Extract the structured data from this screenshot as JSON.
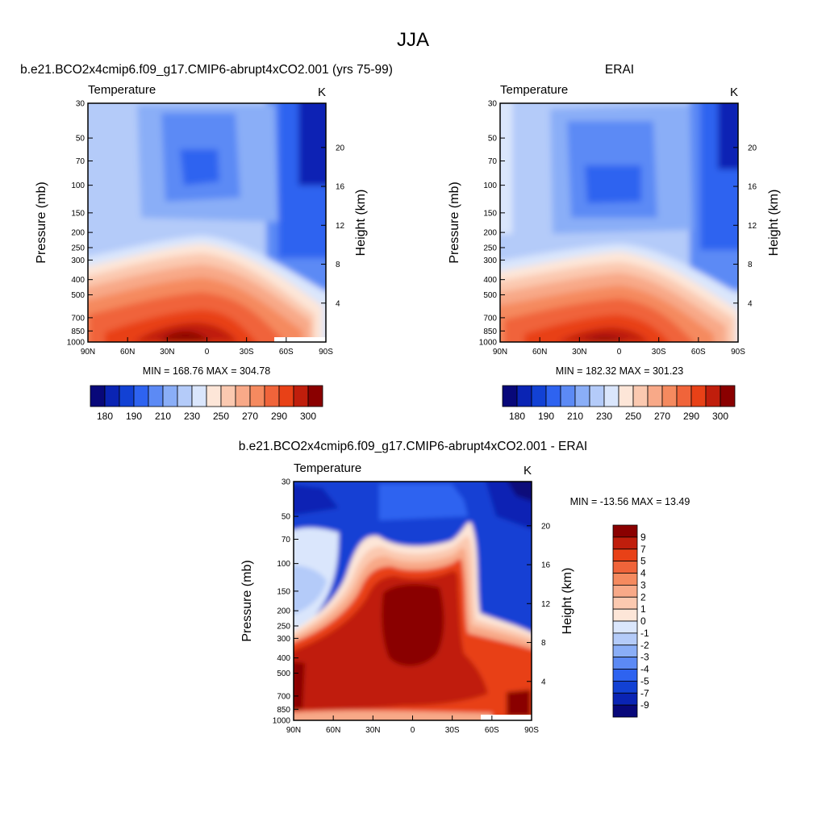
{
  "figure": {
    "title": "JJA"
  },
  "colormaps": {
    "absolute": [
      "#08087a",
      "#0a24b4",
      "#1241d4",
      "#2e63f0",
      "#5c8af5",
      "#8aaef7",
      "#b4cbf9",
      "#dae6fc",
      "#fde6d8",
      "#fbc9b0",
      "#f8a988",
      "#f58a5f",
      "#f0643a",
      "#e84117",
      "#c01e0c",
      "#8a0000"
    ],
    "difference": [
      "#08087a",
      "#0a24b4",
      "#1241d4",
      "#2e63f0",
      "#5c8af5",
      "#8aaef7",
      "#b4cbf9",
      "#dae6fc",
      "#fde6d8",
      "#fbc9b0",
      "#f8a988",
      "#f58a5f",
      "#f0643a",
      "#e84117",
      "#c01e0c",
      "#8a0000"
    ]
  },
  "chart_data": [
    {
      "type": "heatmap",
      "title": "b.e21.BCO2x4cmip6.f09_g17.CMIP6-abrupt4xCO2.001 (yrs 75-99)",
      "left_string": "Temperature",
      "right_string": "K",
      "ylabel": "Pressure (mb)",
      "ylabel_right": "Height (km)",
      "x_ticks": [
        "90N",
        "60N",
        "30N",
        "0",
        "30S",
        "60S",
        "90S"
      ],
      "y_ticks": [
        "30",
        "50",
        "70",
        "100",
        "150",
        "200",
        "250",
        "300",
        "400",
        "500",
        "700",
        "850",
        "1000"
      ],
      "y_right_ticks": [
        "4",
        "8",
        "12",
        "16",
        "20"
      ],
      "stats": "MIN = 168.76  MAX = 304.78",
      "colorbar": {
        "labels": [
          "180",
          "190",
          "210",
          "230",
          "250",
          "270",
          "290",
          "300"
        ]
      },
      "levels": [
        180,
        185,
        190,
        200,
        210,
        220,
        230,
        240,
        250,
        260,
        270,
        280,
        290,
        295,
        300
      ],
      "ylim": [
        30,
        1000
      ],
      "x_range": [
        90,
        -90
      ]
    },
    {
      "type": "heatmap",
      "title": "ERAI",
      "left_string": "Temperature",
      "right_string": "K",
      "ylabel": "Pressure (mb)",
      "ylabel_right": "Height (km)",
      "x_ticks": [
        "90N",
        "60N",
        "30N",
        "0",
        "30S",
        "60S",
        "90S"
      ],
      "y_ticks": [
        "30",
        "50",
        "70",
        "100",
        "150",
        "200",
        "250",
        "300",
        "400",
        "500",
        "700",
        "850",
        "1000"
      ],
      "y_right_ticks": [
        "4",
        "8",
        "12",
        "16",
        "20"
      ],
      "stats": "MIN = 182.32  MAX = 301.23",
      "colorbar": {
        "labels": [
          "180",
          "190",
          "210",
          "230",
          "250",
          "270",
          "290",
          "300"
        ]
      },
      "levels": [
        180,
        185,
        190,
        200,
        210,
        220,
        230,
        240,
        250,
        260,
        270,
        280,
        290,
        295,
        300
      ],
      "ylim": [
        30,
        1000
      ],
      "x_range": [
        90,
        -90
      ]
    },
    {
      "type": "heatmap",
      "title": "b.e21.BCO2x4cmip6.f09_g17.CMIP6-abrupt4xCO2.001 - ERAI",
      "left_string": "Temperature",
      "right_string": "K",
      "ylabel": "Pressure (mb)",
      "ylabel_right": "Height (km)",
      "x_ticks": [
        "90N",
        "60N",
        "30N",
        "0",
        "30S",
        "60S",
        "90S"
      ],
      "y_ticks": [
        "30",
        "50",
        "70",
        "100",
        "150",
        "200",
        "250",
        "300",
        "400",
        "500",
        "700",
        "850",
        "1000"
      ],
      "y_right_ticks": [
        "4",
        "8",
        "12",
        "16",
        "20"
      ],
      "stats": "MIN = -13.56  MAX =  13.49",
      "colorbar": {
        "labels": [
          "9",
          "7",
          "5",
          "4",
          "3",
          "2",
          "1",
          "0",
          "-1",
          "-2",
          "-3",
          "-4",
          "-5",
          "-7",
          "-9"
        ]
      },
      "levels": [
        -9,
        -7,
        -5,
        -4,
        -3,
        -2,
        -1,
        0,
        1,
        2,
        3,
        4,
        5,
        7,
        9
      ],
      "ylim": [
        30,
        1000
      ],
      "x_range": [
        90,
        -90
      ]
    }
  ]
}
